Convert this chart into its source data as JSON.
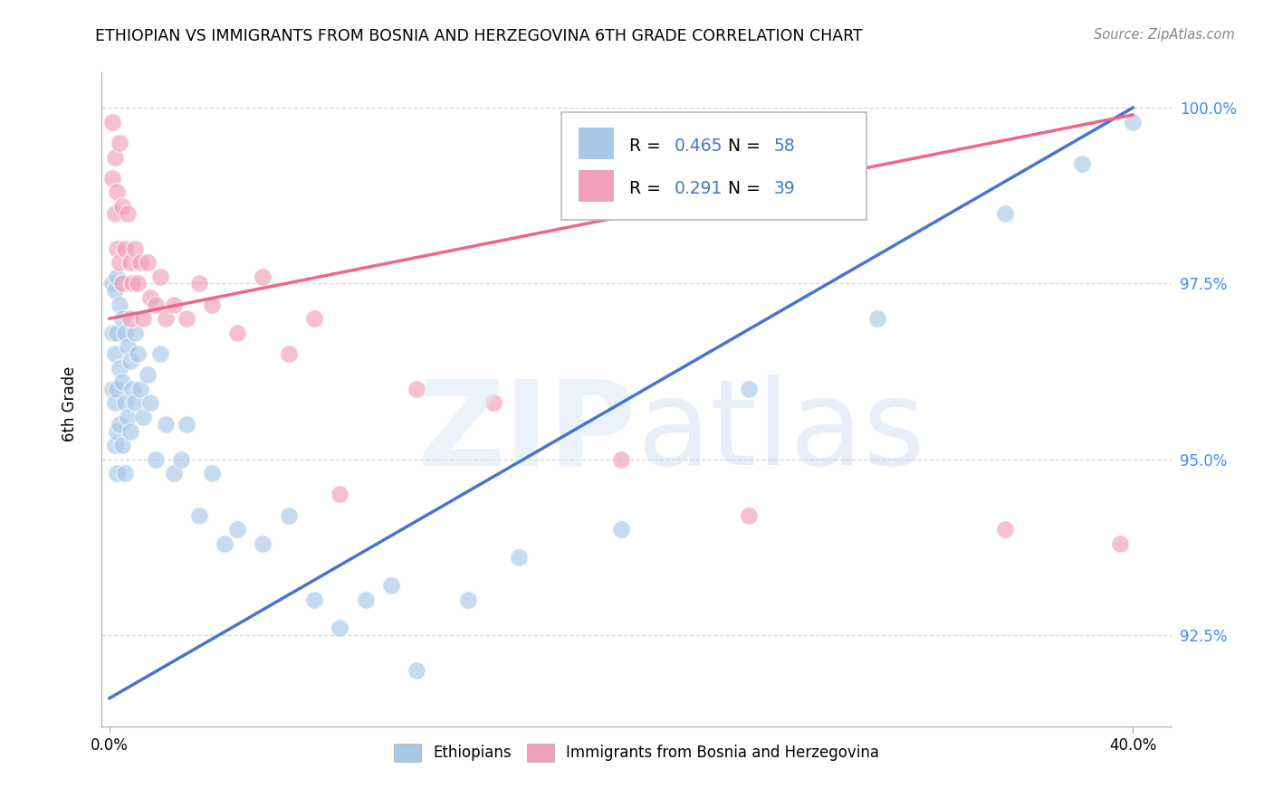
{
  "title": "ETHIOPIAN VS IMMIGRANTS FROM BOSNIA AND HERZEGOVINA 6TH GRADE CORRELATION CHART",
  "source": "Source: ZipAtlas.com",
  "ylabel": "6th Grade",
  "xlim": [
    -0.003,
    0.415
  ],
  "ylim": [
    0.912,
    1.005
  ],
  "xticks": [
    0.0,
    0.4
  ],
  "xticklabels": [
    "0.0%",
    "40.0%"
  ],
  "yticks": [
    0.925,
    0.95,
    0.975,
    1.0
  ],
  "yticklabels": [
    "92.5%",
    "95.0%",
    "97.5%",
    "100.0%"
  ],
  "blue_R": "0.465",
  "blue_N": "58",
  "pink_R": "0.291",
  "pink_N": "39",
  "blue_color": "#a8c8e8",
  "pink_color": "#f0a0b8",
  "blue_line_color": "#4477cc",
  "pink_line_color": "#ee6688",
  "R_N_color": "#4477cc",
  "legend_label_blue": "Ethiopians",
  "legend_label_pink": "Immigrants from Bosnia and Herzegovina",
  "blue_x": [
    0.001,
    0.001,
    0.001,
    0.002,
    0.002,
    0.002,
    0.002,
    0.003,
    0.003,
    0.003,
    0.003,
    0.003,
    0.004,
    0.004,
    0.004,
    0.005,
    0.005,
    0.005,
    0.006,
    0.006,
    0.006,
    0.007,
    0.007,
    0.008,
    0.008,
    0.009,
    0.01,
    0.01,
    0.011,
    0.012,
    0.013,
    0.015,
    0.016,
    0.018,
    0.02,
    0.022,
    0.025,
    0.028,
    0.03,
    0.035,
    0.04,
    0.045,
    0.05,
    0.06,
    0.07,
    0.08,
    0.09,
    0.1,
    0.11,
    0.12,
    0.14,
    0.16,
    0.2,
    0.25,
    0.3,
    0.35,
    0.38,
    0.4
  ],
  "blue_y": [
    0.975,
    0.968,
    0.96,
    0.974,
    0.965,
    0.958,
    0.952,
    0.976,
    0.968,
    0.96,
    0.954,
    0.948,
    0.972,
    0.963,
    0.955,
    0.97,
    0.961,
    0.952,
    0.968,
    0.958,
    0.948,
    0.966,
    0.956,
    0.964,
    0.954,
    0.96,
    0.968,
    0.958,
    0.965,
    0.96,
    0.956,
    0.962,
    0.958,
    0.95,
    0.965,
    0.955,
    0.948,
    0.95,
    0.955,
    0.942,
    0.948,
    0.938,
    0.94,
    0.938,
    0.942,
    0.93,
    0.926,
    0.93,
    0.932,
    0.92,
    0.93,
    0.936,
    0.94,
    0.96,
    0.97,
    0.985,
    0.992,
    0.998
  ],
  "pink_x": [
    0.001,
    0.001,
    0.002,
    0.002,
    0.003,
    0.003,
    0.004,
    0.004,
    0.005,
    0.005,
    0.006,
    0.007,
    0.008,
    0.008,
    0.009,
    0.01,
    0.011,
    0.012,
    0.013,
    0.015,
    0.016,
    0.018,
    0.02,
    0.022,
    0.025,
    0.03,
    0.035,
    0.04,
    0.05,
    0.06,
    0.07,
    0.08,
    0.09,
    0.12,
    0.15,
    0.2,
    0.25,
    0.35,
    0.395
  ],
  "pink_y": [
    0.998,
    0.99,
    0.993,
    0.985,
    0.988,
    0.98,
    0.995,
    0.978,
    0.986,
    0.975,
    0.98,
    0.985,
    0.978,
    0.97,
    0.975,
    0.98,
    0.975,
    0.978,
    0.97,
    0.978,
    0.973,
    0.972,
    0.976,
    0.97,
    0.972,
    0.97,
    0.975,
    0.972,
    0.968,
    0.976,
    0.965,
    0.97,
    0.945,
    0.96,
    0.958,
    0.95,
    0.942,
    0.94,
    0.938
  ]
}
